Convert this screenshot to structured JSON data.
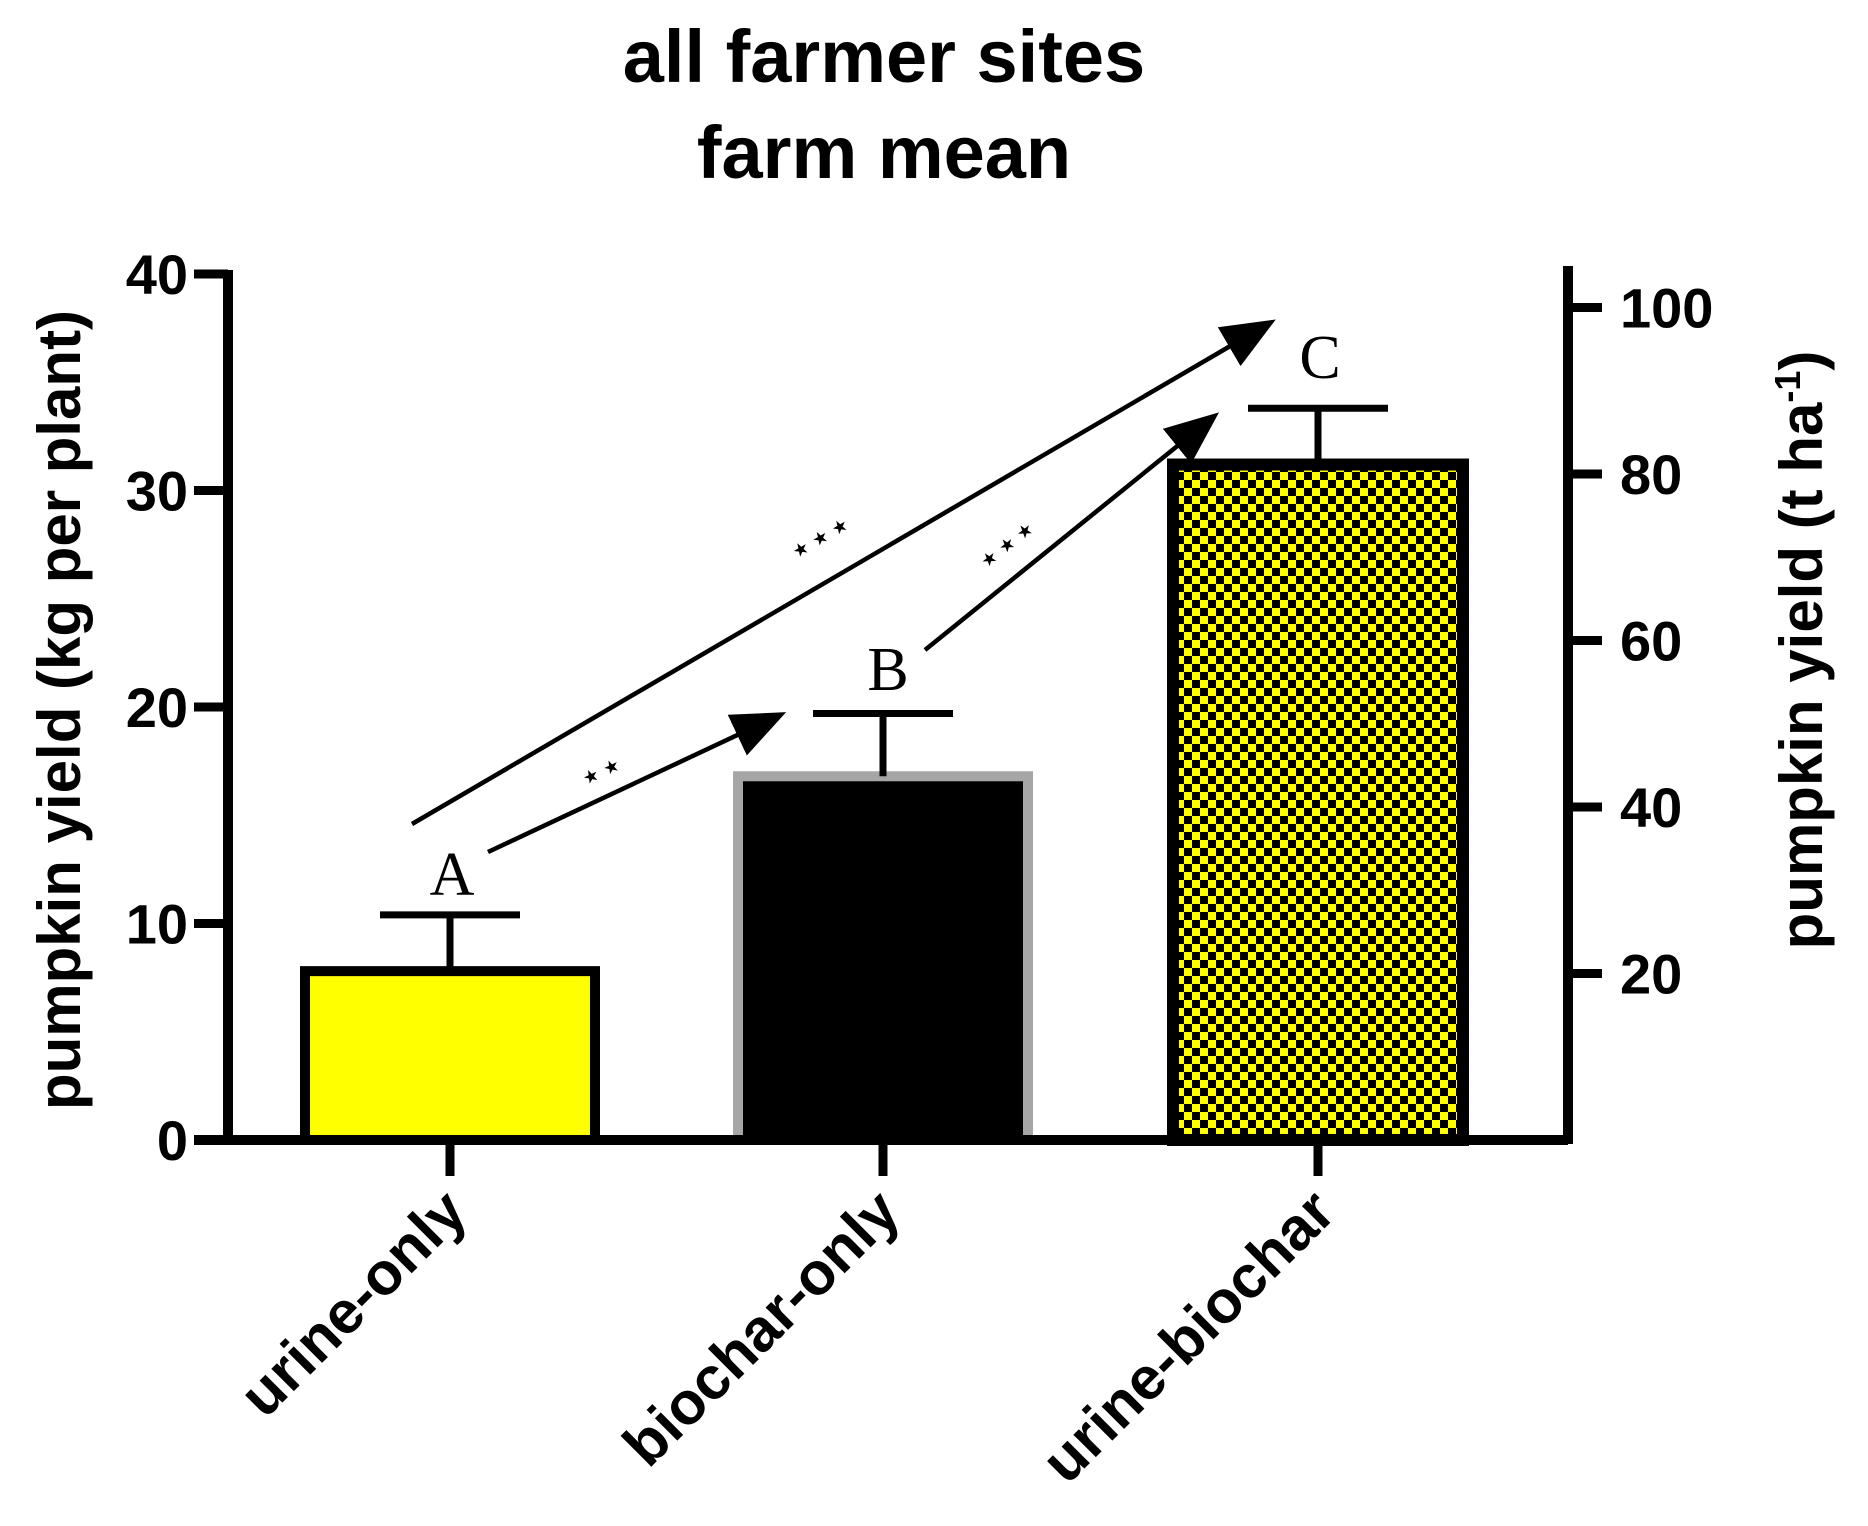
{
  "chart_data": {
    "type": "bar",
    "title_lines": [
      "all farmer sites",
      "farm mean"
    ],
    "ylabel_left": "pumpkin yield (kg per plant)",
    "ylabel_right": "pumpkin yield (t ha",
    "ylabel_right_sup": "-1",
    "ylabel_right_close": ")",
    "ylim_left": [
      0,
      40
    ],
    "yticks_left": [
      "0",
      "10",
      "20",
      "30",
      "40"
    ],
    "ylim_right": [
      0,
      105
    ],
    "yticks_right": [
      "20",
      "40",
      "60",
      "80",
      "100"
    ],
    "categories": [
      "urine-only",
      "biochar-only",
      "urine-biochar"
    ],
    "values": [
      7.8,
      16.8,
      31.2
    ],
    "errors": [
      2.6,
      2.9,
      2.6
    ],
    "group_letters": [
      "A",
      "B",
      "C"
    ],
    "significance": [
      {
        "from": "urine-only",
        "to": "biochar-only",
        "label": "**"
      },
      {
        "from": "biochar-only",
        "to": "urine-biochar",
        "label": "***"
      },
      {
        "from": "urine-only",
        "to": "urine-biochar",
        "label": "***"
      }
    ],
    "bar_colors": [
      "#ffff00",
      "#000000",
      "checkered yellow/black"
    ],
    "grid": false
  }
}
